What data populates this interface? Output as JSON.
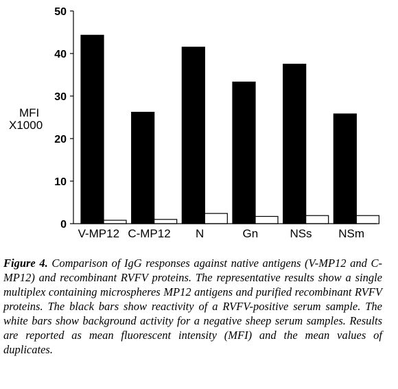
{
  "chart_data": {
    "type": "bar",
    "categories": [
      "V-MP12",
      "C-MP12",
      "N",
      "Gn",
      "NSs",
      "NSm"
    ],
    "series": [
      {
        "values": [
          44.3,
          26.2,
          41.5,
          33.3,
          37.5,
          25.8
        ],
        "color": "#000000"
      },
      {
        "values": [
          0.8,
          1.0,
          2.4,
          1.7,
          1.9,
          1.9
        ],
        "color": "#ffffff"
      }
    ],
    "ylabel_line1": "MFI",
    "ylabel_line2": "X1000",
    "ylim": [
      0,
      50
    ],
    "yticks": [
      0,
      10,
      20,
      30,
      40,
      50
    ],
    "grid": false
  },
  "caption": {
    "figure_label": "Figure 4.",
    "text": "Comparison of IgG responses against native antigens (V-MP12 and C-MP12) and recombinant RVFV proteins. The representative results show a single multiplex containing microspheres MP12 antigens and purified recombinant RVFV proteins. The black bars show reactivity of a RVFV-positive serum sample. The white bars show background activity for a negative sheep serum samples. Results are reported as mean fluorescent intensity (MFI) and the mean values of duplicates."
  }
}
